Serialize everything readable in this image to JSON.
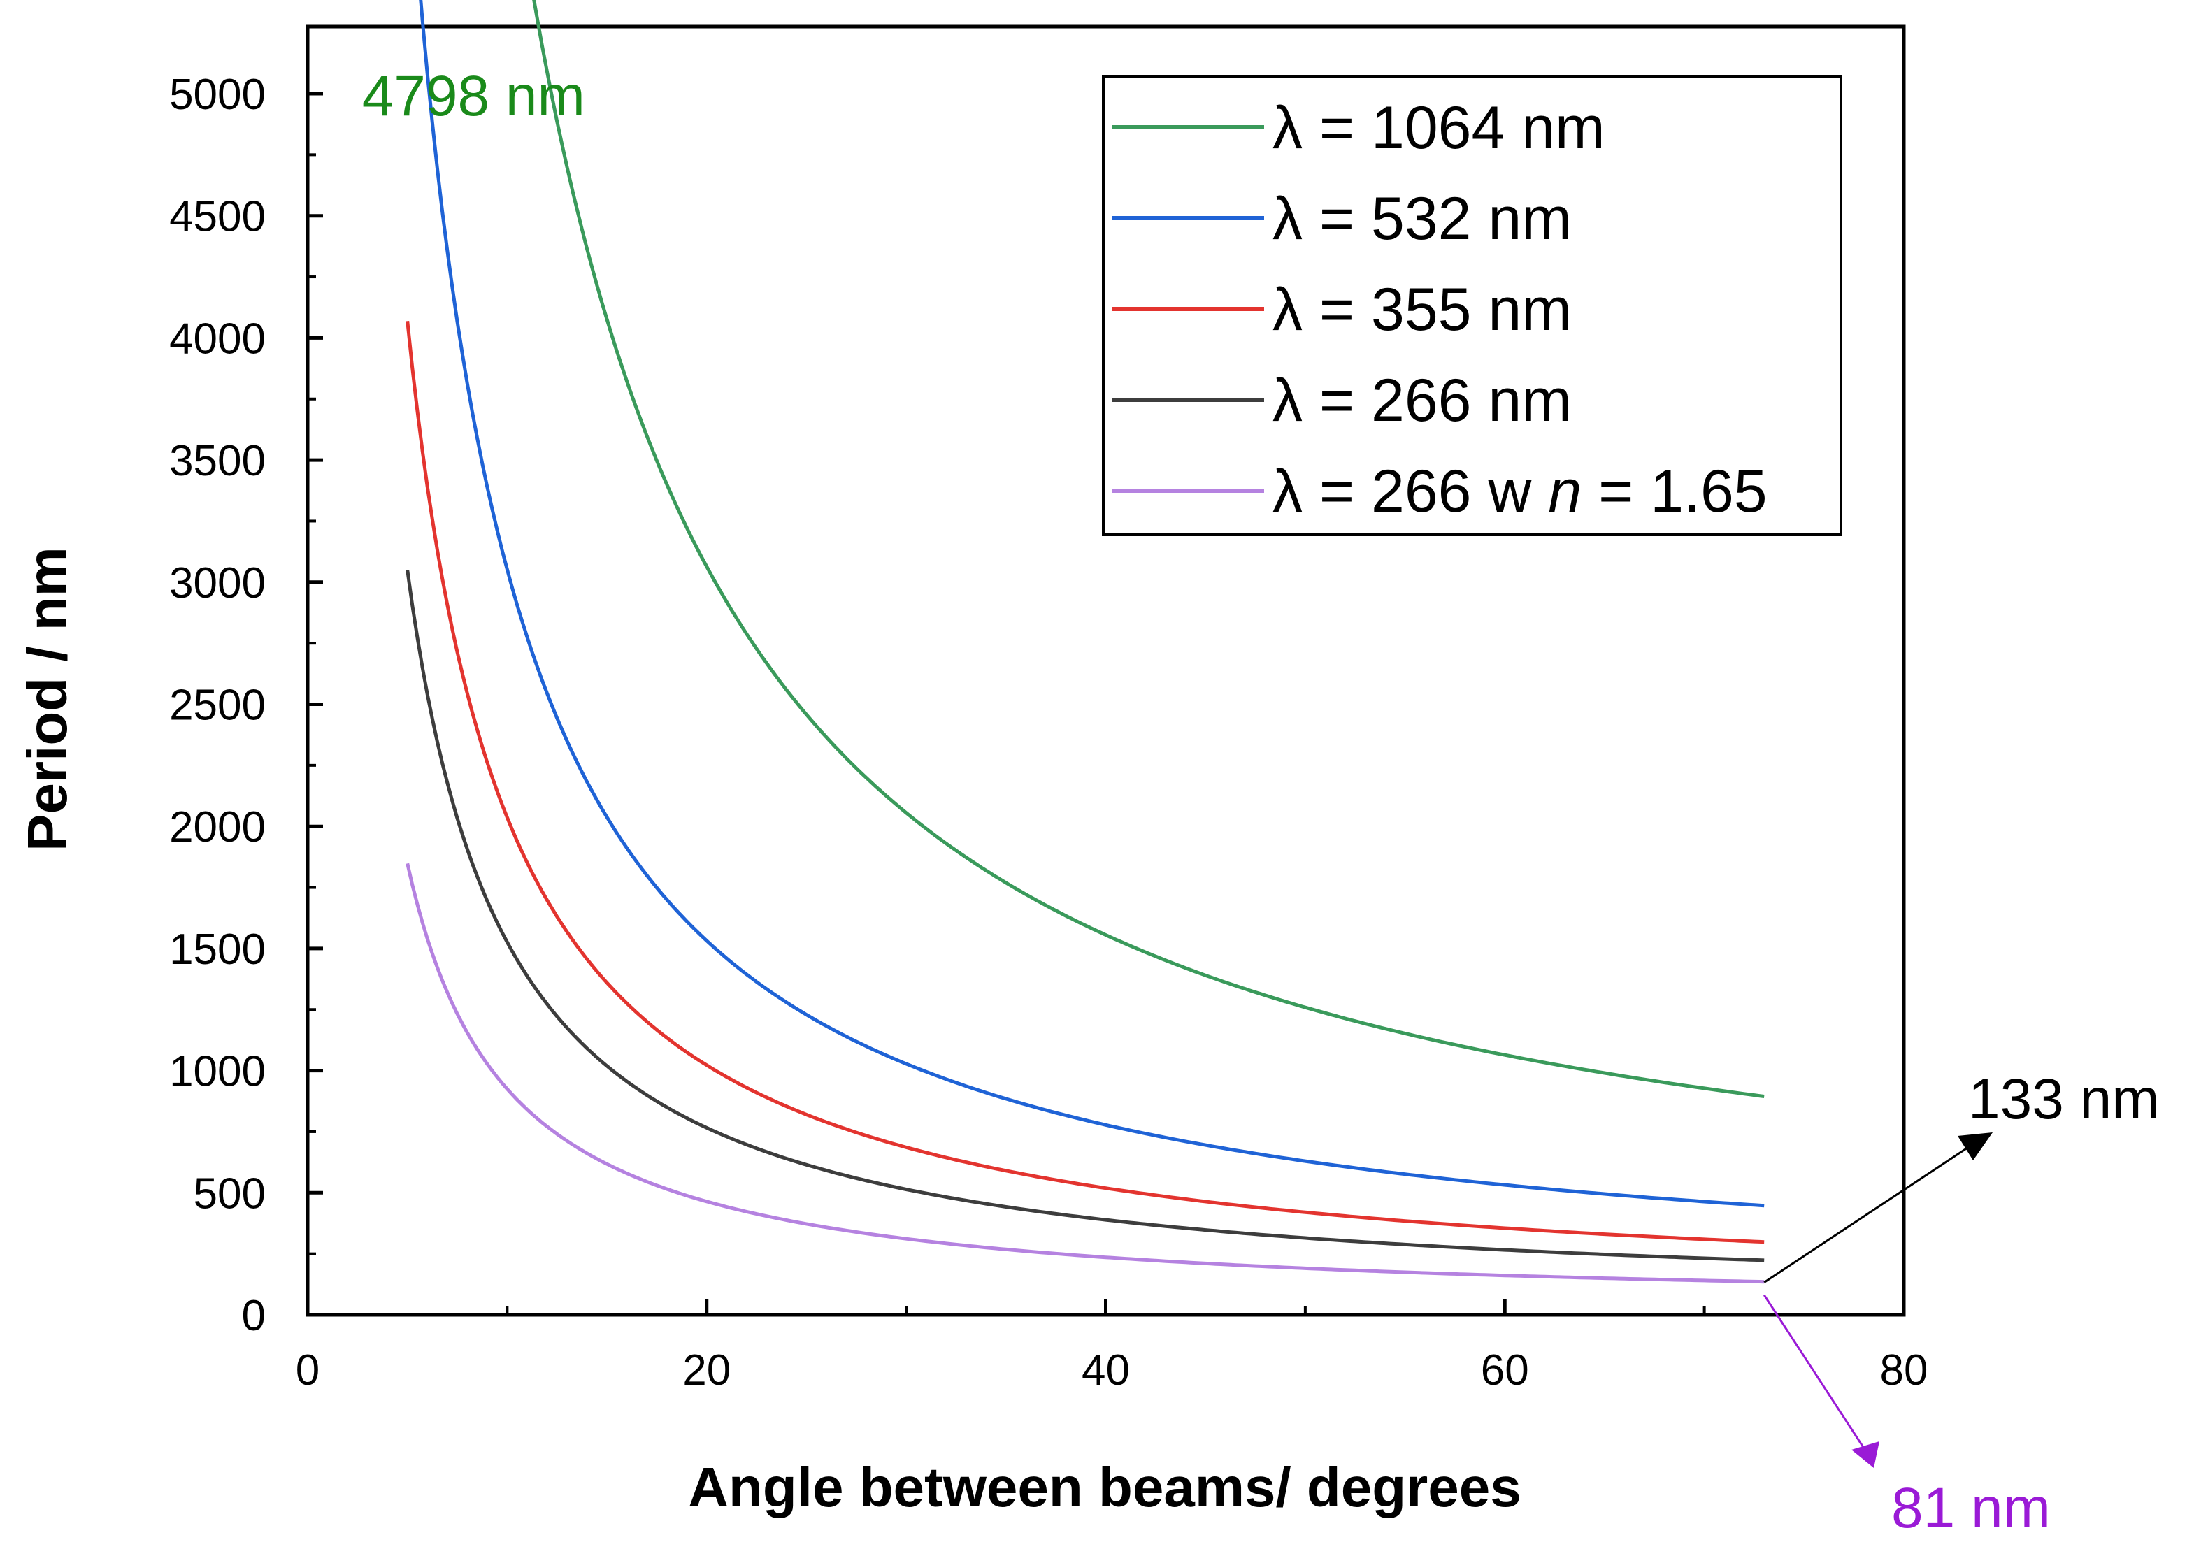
{
  "chart_data": {
    "type": "line",
    "xlabel": "Angle between beams/ degrees",
    "ylabel": "Period / nm",
    "xlim": [
      0,
      80
    ],
    "ylim": [
      0,
      5200
    ],
    "xticks": [
      0,
      20,
      40,
      60,
      80
    ],
    "yticks": [
      0,
      500,
      1000,
      1500,
      2000,
      2500,
      3000,
      3500,
      4000,
      4500,
      5000
    ],
    "grid": false,
    "legend_position": "top-right",
    "series": [
      {
        "name": "1064 nm",
        "legend_prefix": "λ =",
        "legend_value": "1064 nm",
        "legend_italic": "",
        "legend_suffix": "",
        "wavelength": 1064,
        "n": 1.0,
        "color": "#3a9a5b"
      },
      {
        "name": "532 nm",
        "legend_prefix": "λ =",
        "legend_value": "532 nm",
        "legend_italic": "",
        "legend_suffix": "",
        "wavelength": 532,
        "n": 1.0,
        "color": "#1f63d6"
      },
      {
        "name": "355 nm",
        "legend_prefix": "λ =",
        "legend_value": "355 nm",
        "legend_italic": "",
        "legend_suffix": "",
        "wavelength": 355,
        "n": 1.0,
        "color": "#e3342f"
      },
      {
        "name": "266 nm",
        "legend_prefix": "λ =",
        "legend_value": "266 nm",
        "legend_italic": "",
        "legend_suffix": "",
        "wavelength": 266,
        "n": 1.0,
        "color": "#3d3d3d"
      },
      {
        "name": "266 w n = 1.65",
        "legend_prefix": "λ =",
        "legend_value": " 266 w",
        "legend_italic": "n",
        "legend_suffix": "= 1.65",
        "wavelength": 266,
        "n": 1.65,
        "color": "#b582e0"
      }
    ],
    "x_range": [
      5,
      73
    ],
    "annotations": [
      {
        "text": "4798 nm",
        "color": "#1a8a1a",
        "x": 5,
        "y": 4798
      },
      {
        "text": "133 nm",
        "color": "#000000",
        "x": 73,
        "y": 133
      },
      {
        "text": "81 nm",
        "color": "#9a1ad6",
        "x": 73,
        "y": 81
      }
    ]
  }
}
